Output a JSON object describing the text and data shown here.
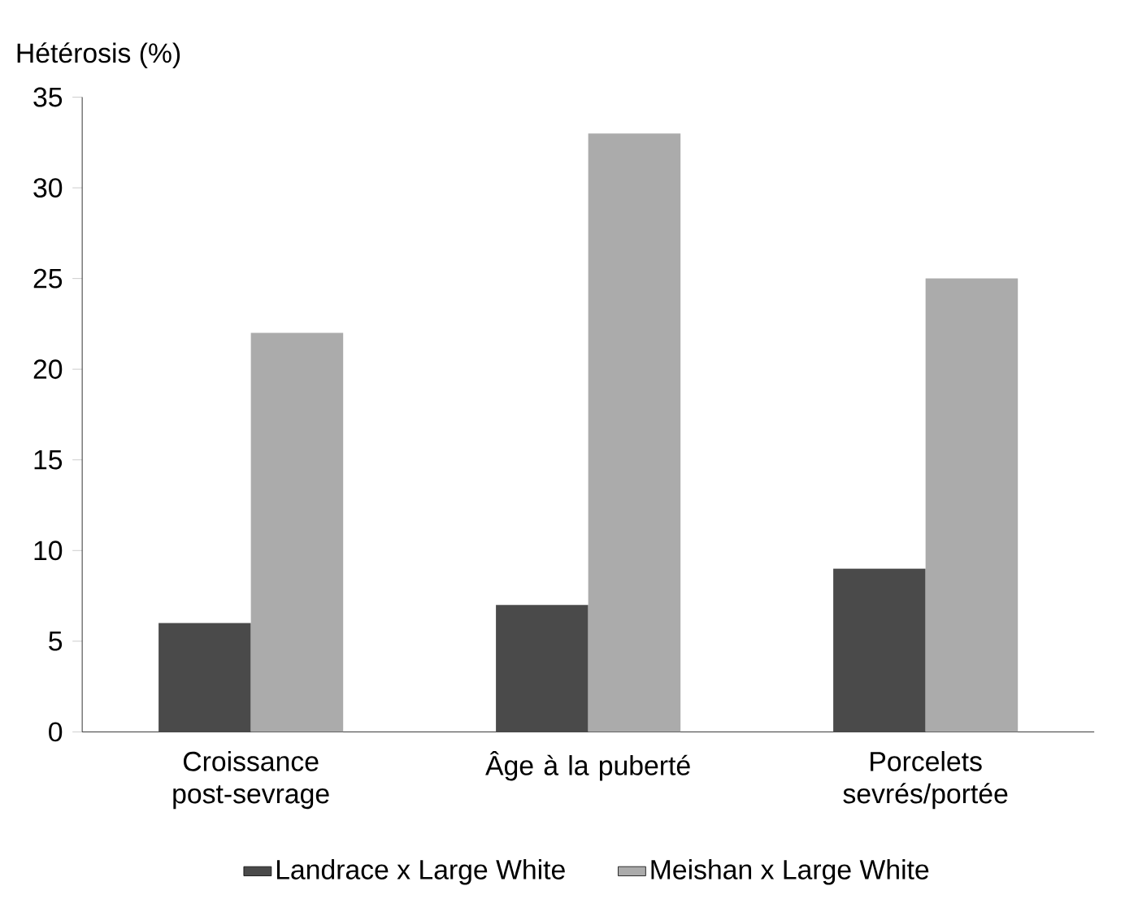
{
  "chart_data": {
    "type": "bar",
    "ylabel": "Hétérosis (%)",
    "categories": [
      "Croissance post-sevrage",
      "Âge à la puberté",
      "Porcelets sevrés/portée"
    ],
    "series": [
      {
        "name": "Landrace x Large White",
        "color": "#4a4a4a",
        "values": [
          6,
          7,
          9
        ]
      },
      {
        "name": "Meishan x Large White",
        "color": "#ababab",
        "values": [
          22,
          33,
          25
        ]
      }
    ],
    "ylim": [
      0,
      35
    ],
    "yticks": [
      0,
      5,
      10,
      15,
      20,
      25,
      30,
      35
    ],
    "grid": false,
    "legend": "bottom"
  }
}
